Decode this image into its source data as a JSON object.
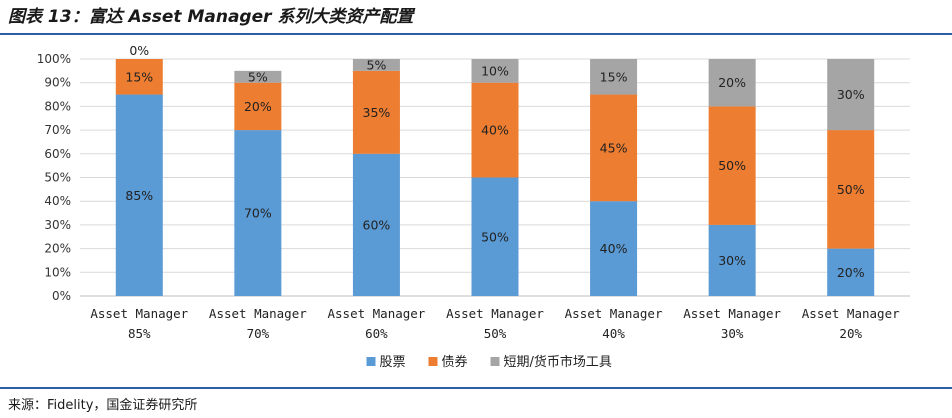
{
  "header": {
    "title": "图表 13：富达 Asset Manager 系列大类资产配置"
  },
  "footer": {
    "source": "来源：Fidelity，国金证券研究所"
  },
  "chart_data": {
    "type": "bar",
    "stacked": true,
    "percent_stacked": true,
    "categories": [
      [
        "Asset Manager",
        "85%"
      ],
      [
        "Asset Manager",
        "70%"
      ],
      [
        "Asset Manager",
        "60%"
      ],
      [
        "Asset Manager",
        "50%"
      ],
      [
        "Asset Manager",
        "40%"
      ],
      [
        "Asset Manager",
        "30%"
      ],
      [
        "Asset Manager",
        "20%"
      ]
    ],
    "series": [
      {
        "name": "股票",
        "color": "#5b9bd5",
        "values": [
          85,
          70,
          60,
          50,
          40,
          30,
          20
        ]
      },
      {
        "name": "债券",
        "color": "#ed7d31",
        "values": [
          15,
          20,
          35,
          40,
          45,
          50,
          50
        ]
      },
      {
        "name": "短期/货币市场工具",
        "color": "#a5a5a5",
        "values": [
          0,
          5,
          5,
          10,
          15,
          20,
          30
        ]
      }
    ],
    "value_suffix": "%",
    "ylim": [
      0,
      100
    ],
    "yticks": [
      "0%",
      "10%",
      "20%",
      "30%",
      "40%",
      "50%",
      "60%",
      "70%",
      "80%",
      "90%",
      "100%"
    ],
    "grid": true,
    "legend_position": "bottom"
  }
}
